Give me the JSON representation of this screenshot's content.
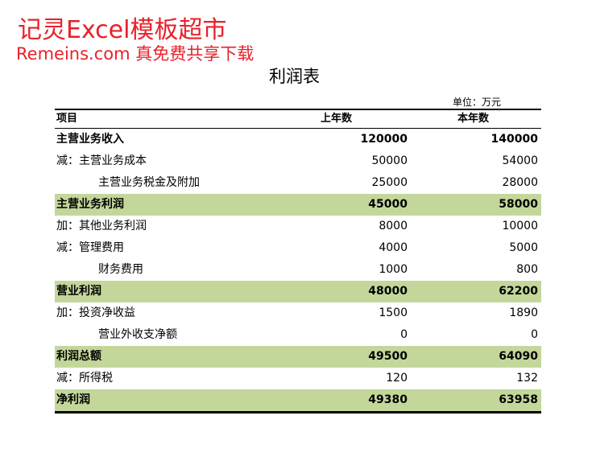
{
  "watermark": {
    "line1": "记灵Excel模板超市",
    "line2": "Remeins.com 真免费共享下载"
  },
  "title": "利润表",
  "unit": "单位：万元",
  "headers": {
    "item": "项目",
    "prev_year": "上年数",
    "curr_year": "本年数"
  },
  "rows": [
    {
      "label": "主营业务收入",
      "prev": "120000",
      "curr": "140000"
    },
    {
      "label": "减：主营业务成本",
      "prev": "50000",
      "curr": "54000"
    },
    {
      "label": "主营业务税金及附加",
      "prev": "25000",
      "curr": "28000"
    },
    {
      "label": "主营业务利润",
      "prev": "45000",
      "curr": "58000"
    },
    {
      "label": "加：其他业务利润",
      "prev": "8000",
      "curr": "10000"
    },
    {
      "label": "减：管理费用",
      "prev": "4000",
      "curr": "5000"
    },
    {
      "label": "财务费用",
      "prev": "1000",
      "curr": "800"
    },
    {
      "label": "营业利润",
      "prev": "48000",
      "curr": "62200"
    },
    {
      "label": "加：投资净收益",
      "prev": "1500",
      "curr": "1890"
    },
    {
      "label": "营业外收支净额",
      "prev": "0",
      "curr": "0"
    },
    {
      "label": "利润总额",
      "prev": "49500",
      "curr": "64090"
    },
    {
      "label": "减：所得税",
      "prev": "120",
      "curr": "132"
    },
    {
      "label": "净利润",
      "prev": "49380",
      "curr": "63958"
    }
  ],
  "colors": {
    "watermark": "#e8202a",
    "highlight_row": "#c4d79b"
  }
}
